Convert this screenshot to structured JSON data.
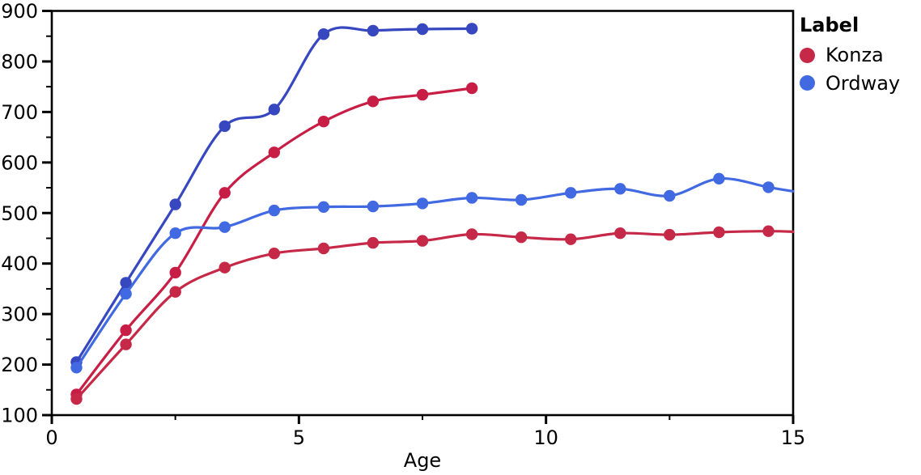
{
  "chart_data": {
    "type": "line",
    "title": "",
    "xlabel": "Age",
    "ylabel": "",
    "xlim": [
      0,
      15
    ],
    "ylim": [
      100,
      900
    ],
    "x_ticks": [
      0,
      5,
      10,
      15
    ],
    "x_minor_ticks": [
      2.5,
      7.5,
      12.5
    ],
    "y_ticks": [
      100,
      200,
      300,
      400,
      500,
      600,
      700,
      800,
      900
    ],
    "y_minor_ticks": [
      150,
      250,
      350,
      450,
      550,
      650,
      750,
      850
    ],
    "grid": false,
    "background_color": "#ffffff",
    "axis_color": "#000000",
    "legend": {
      "title": "Label",
      "position": "top-right-outside",
      "items": [
        {
          "label": "Konza",
          "color": "#c62847"
        },
        {
          "label": "Ordway",
          "color": "#4169e1"
        }
      ]
    },
    "series": [
      {
        "name": "konza-upper",
        "label": "Konza",
        "color": "#c81e45",
        "points": [
          [
            0.5,
            141
          ],
          [
            1.5,
            268
          ],
          [
            2.5,
            382
          ],
          [
            3.5,
            540
          ],
          [
            4.5,
            620
          ],
          [
            5.5,
            681
          ],
          [
            6.5,
            721
          ],
          [
            7.5,
            734
          ],
          [
            8.5,
            747
          ]
        ]
      },
      {
        "name": "konza-lower",
        "label": "Konza",
        "color": "#c62847",
        "points": [
          [
            0.5,
            132
          ],
          [
            1.5,
            240
          ],
          [
            2.5,
            344
          ],
          [
            3.5,
            392
          ],
          [
            4.5,
            420
          ],
          [
            5.5,
            430
          ],
          [
            6.5,
            441
          ],
          [
            7.5,
            445
          ],
          [
            8.5,
            458
          ],
          [
            9.5,
            452
          ],
          [
            10.5,
            448
          ],
          [
            11.5,
            460
          ],
          [
            12.5,
            457
          ],
          [
            13.5,
            462
          ],
          [
            14.5,
            464
          ]
        ],
        "end_point": [
          15,
          463
        ]
      },
      {
        "name": "ordway-upper",
        "label": "Ordway",
        "color": "#3647c0",
        "points": [
          [
            0.5,
            205
          ],
          [
            1.5,
            362
          ],
          [
            2.5,
            517
          ],
          [
            3.5,
            672
          ],
          [
            4.5,
            705
          ],
          [
            5.5,
            854
          ],
          [
            6.5,
            861
          ],
          [
            7.5,
            864
          ],
          [
            8.5,
            865
          ]
        ]
      },
      {
        "name": "ordway-lower",
        "label": "Ordway",
        "color": "#4169e1",
        "points": [
          [
            0.5,
            194
          ],
          [
            1.5,
            340
          ],
          [
            2.5,
            460
          ],
          [
            3.5,
            472
          ],
          [
            4.5,
            505
          ],
          [
            5.5,
            512
          ],
          [
            6.5,
            513
          ],
          [
            7.5,
            519
          ],
          [
            8.5,
            530
          ],
          [
            9.5,
            526
          ],
          [
            10.5,
            540
          ],
          [
            11.5,
            548
          ],
          [
            12.5,
            534
          ],
          [
            13.5,
            568
          ],
          [
            14.5,
            551
          ]
        ],
        "end_point": [
          15,
          543
        ]
      }
    ]
  }
}
